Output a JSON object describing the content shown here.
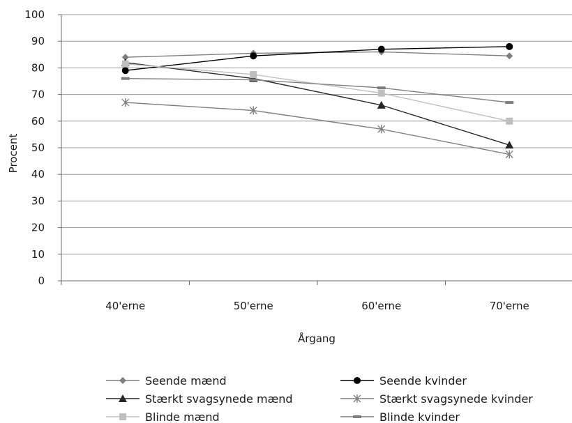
{
  "chart_data": {
    "type": "line",
    "title": "",
    "xlabel": "Årgang",
    "ylabel": "Procent",
    "categories": [
      "40'erne",
      "50'erne",
      "60'erne",
      "70'erne"
    ],
    "ylim": [
      0,
      100
    ],
    "yticks": [
      0,
      10,
      20,
      30,
      40,
      50,
      60,
      70,
      80,
      90,
      100
    ],
    "grid": "horizontal",
    "legend_position": "bottom",
    "series": [
      {
        "name": "Seende mænd",
        "values": [
          84,
          85.5,
          86,
          84.5
        ],
        "color": "#7f7f7f",
        "marker": "diamond"
      },
      {
        "name": "Seende kvinder",
        "values": [
          79,
          84.5,
          87,
          88
        ],
        "color": "#000000",
        "marker": "circle"
      },
      {
        "name": "Stærkt svagsynede mænd",
        "values": [
          82,
          76,
          66,
          51
        ],
        "color": "#262626",
        "marker": "triangle"
      },
      {
        "name": "Stærkt svagsynede kvinder",
        "values": [
          67,
          64,
          57,
          47.5
        ],
        "color": "#7f7f7f",
        "marker": "asterisk"
      },
      {
        "name": "Blinde mænd",
        "values": [
          81.5,
          77.5,
          70.5,
          60
        ],
        "color": "#bfbfbf",
        "marker": "square"
      },
      {
        "name": "Blinde kvinder",
        "values": [
          76,
          75.5,
          72.5,
          67
        ],
        "color": "#7f7f7f",
        "marker": "dash"
      }
    ]
  }
}
